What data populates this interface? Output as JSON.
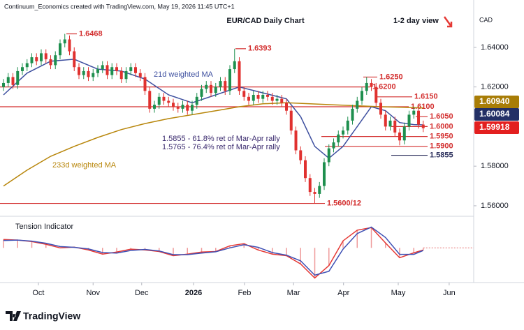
{
  "chart_data": {
    "type": "candlestick",
    "title": "EUR/CAD Daily Chart",
    "subtitle": "Continuum_Economics created with TradingView.com, May 19, 2026 11:45 UTC+1",
    "view_label": "1-2 day view",
    "currency": "CAD",
    "brand": "TradingView",
    "up_color": "#1e8f4e",
    "down_color": "#e0312f",
    "ylim": [
      1.5547,
      1.6639
    ],
    "xlim": [
      -0.74,
      99.7
    ],
    "yticks": [
      {
        "value": 1.64,
        "label": "1.64000"
      },
      {
        "value": 1.62,
        "label": "1.62000"
      },
      {
        "value": 1.58,
        "label": "1.58000"
      },
      {
        "value": 1.56,
        "label": "1.56000"
      }
    ],
    "xticks": [
      {
        "value": 7.4,
        "label": "Oct"
      },
      {
        "value": 19,
        "label": "Nov"
      },
      {
        "value": 29.3,
        "label": "Dec"
      },
      {
        "value": 40.3,
        "label": "2026"
      },
      {
        "value": 51.1,
        "label": "Feb"
      },
      {
        "value": 61.5,
        "label": "Mar"
      },
      {
        "value": 72.1,
        "label": "Apr"
      },
      {
        "value": 83.7,
        "label": "May"
      },
      {
        "value": 94.5,
        "label": "Jun"
      }
    ],
    "x": [
      0,
      1,
      2,
      3,
      4,
      5,
      6,
      7,
      8,
      9,
      10,
      11,
      12,
      13,
      14,
      15,
      16,
      17,
      18,
      19,
      20,
      21,
      22,
      23,
      24,
      25,
      26,
      27,
      28,
      29,
      30,
      31,
      32,
      33,
      34,
      35,
      36,
      37,
      38,
      39,
      40,
      41,
      42,
      43,
      44,
      45,
      46,
      47,
      48,
      49,
      50,
      51,
      52,
      53,
      54,
      55,
      56,
      57,
      58,
      59,
      60,
      61,
      62,
      63,
      64,
      65,
      66,
      67,
      68,
      69,
      70,
      71,
      72,
      73,
      74,
      75,
      76,
      77,
      78,
      79,
      80,
      81,
      82,
      83,
      84,
      85,
      86,
      87,
      88,
      89
    ],
    "open": [
      1.62,
      1.622,
      1.625,
      1.621,
      1.628,
      1.63,
      1.632,
      1.635,
      1.633,
      1.637,
      1.634,
      1.631,
      1.636,
      1.642,
      1.644,
      1.638,
      1.63,
      1.626,
      1.628,
      1.625,
      1.627,
      1.629,
      1.631,
      1.626,
      1.63,
      1.628,
      1.624,
      1.628,
      1.63,
      1.627,
      1.625,
      1.618,
      1.609,
      1.611,
      1.615,
      1.613,
      1.612,
      1.61,
      1.609,
      1.611,
      1.608,
      1.611,
      1.615,
      1.619,
      1.621,
      1.617,
      1.62,
      1.623,
      1.618,
      1.629,
      1.633,
      1.618,
      1.615,
      1.613,
      1.616,
      1.614,
      1.616,
      1.615,
      1.613,
      1.614,
      1.612,
      1.608,
      1.598,
      1.588,
      1.583,
      1.574,
      1.567,
      1.566,
      1.57,
      1.582,
      1.589,
      1.592,
      1.596,
      1.598,
      1.603,
      1.609,
      1.613,
      1.618,
      1.622,
      1.62,
      1.612,
      1.606,
      1.6,
      1.603,
      1.597,
      1.593,
      1.6,
      1.606,
      1.608,
      1.601
    ],
    "high": [
      1.624,
      1.627,
      1.627,
      1.63,
      1.632,
      1.634,
      1.637,
      1.637,
      1.639,
      1.639,
      1.636,
      1.638,
      1.644,
      1.6468,
      1.646,
      1.64,
      1.632,
      1.63,
      1.63,
      1.629,
      1.631,
      1.633,
      1.633,
      1.632,
      1.632,
      1.63,
      1.63,
      1.632,
      1.632,
      1.629,
      1.627,
      1.62,
      1.613,
      1.617,
      1.617,
      1.615,
      1.614,
      1.612,
      1.613,
      1.613,
      1.613,
      1.617,
      1.621,
      1.623,
      1.623,
      1.622,
      1.625,
      1.625,
      1.631,
      1.6393,
      1.635,
      1.62,
      1.617,
      1.618,
      1.618,
      1.618,
      1.618,
      1.617,
      1.616,
      1.616,
      1.614,
      1.61,
      1.6,
      1.59,
      1.585,
      1.576,
      1.569,
      1.572,
      1.584,
      1.591,
      1.594,
      1.598,
      1.6,
      1.605,
      1.611,
      1.615,
      1.62,
      1.625,
      1.624,
      1.622,
      1.614,
      1.608,
      1.605,
      1.605,
      1.599,
      1.602,
      1.608,
      1.61,
      1.61,
      1.603
    ],
    "low": [
      1.618,
      1.62,
      1.619,
      1.619,
      1.626,
      1.628,
      1.63,
      1.631,
      1.631,
      1.632,
      1.629,
      1.629,
      1.634,
      1.64,
      1.636,
      1.628,
      1.624,
      1.624,
      1.623,
      1.623,
      1.625,
      1.627,
      1.624,
      1.624,
      1.626,
      1.622,
      1.622,
      1.626,
      1.625,
      1.623,
      1.616,
      1.607,
      1.607,
      1.609,
      1.611,
      1.61,
      1.608,
      1.607,
      1.607,
      1.606,
      1.606,
      1.609,
      1.613,
      1.617,
      1.615,
      1.615,
      1.618,
      1.616,
      1.616,
      1.627,
      1.616,
      1.613,
      1.611,
      1.611,
      1.612,
      1.612,
      1.613,
      1.611,
      1.611,
      1.61,
      1.606,
      1.596,
      1.586,
      1.581,
      1.572,
      1.565,
      1.5612,
      1.564,
      1.568,
      1.58,
      1.587,
      1.59,
      1.594,
      1.596,
      1.601,
      1.607,
      1.611,
      1.616,
      1.618,
      1.61,
      1.604,
      1.598,
      1.598,
      1.595,
      1.5905,
      1.591,
      1.598,
      1.604,
      1.599,
      1.5972
    ],
    "close": [
      1.622,
      1.625,
      1.621,
      1.628,
      1.63,
      1.632,
      1.635,
      1.633,
      1.637,
      1.634,
      1.631,
      1.636,
      1.642,
      1.644,
      1.638,
      1.63,
      1.626,
      1.628,
      1.625,
      1.627,
      1.629,
      1.631,
      1.626,
      1.63,
      1.628,
      1.624,
      1.628,
      1.63,
      1.627,
      1.625,
      1.618,
      1.609,
      1.611,
      1.615,
      1.613,
      1.612,
      1.61,
      1.609,
      1.611,
      1.608,
      1.611,
      1.615,
      1.619,
      1.621,
      1.617,
      1.62,
      1.623,
      1.618,
      1.629,
      1.633,
      1.618,
      1.615,
      1.613,
      1.616,
      1.614,
      1.616,
      1.615,
      1.613,
      1.614,
      1.612,
      1.608,
      1.598,
      1.588,
      1.583,
      1.574,
      1.567,
      1.566,
      1.57,
      1.582,
      1.589,
      1.592,
      1.596,
      1.598,
      1.603,
      1.609,
      1.613,
      1.618,
      1.622,
      1.62,
      1.612,
      1.606,
      1.6,
      1.603,
      1.597,
      1.593,
      1.6,
      1.606,
      1.608,
      1.601,
      1.59918
    ],
    "overlays": [
      {
        "name": "21d weighted MA",
        "color": "#3d4f9f",
        "x": [
          0,
          5,
          10,
          15,
          20,
          25,
          30,
          35,
          40,
          45,
          50,
          55,
          60,
          63,
          66,
          69,
          72,
          75,
          78,
          81,
          84,
          87,
          89
        ],
        "values": [
          1.616,
          1.627,
          1.633,
          1.634,
          1.629,
          1.628,
          1.624,
          1.616,
          1.612,
          1.616,
          1.62,
          1.617,
          1.614,
          1.605,
          1.59,
          1.584,
          1.59,
          1.6,
          1.61,
          1.608,
          1.602,
          1.601,
          1.60084
        ]
      },
      {
        "name": "233d weighted MA",
        "color": "#b8860b",
        "x": [
          0,
          5,
          10,
          15,
          20,
          25,
          30,
          35,
          40,
          45,
          50,
          55,
          60,
          65,
          70,
          75,
          80,
          85,
          89
        ],
        "values": [
          1.57,
          1.578,
          1.585,
          1.59,
          1.5945,
          1.5985,
          1.6015,
          1.604,
          1.606,
          1.608,
          1.61,
          1.6115,
          1.612,
          1.6115,
          1.611,
          1.6105,
          1.61,
          1.6097,
          1.6094
        ]
      }
    ],
    "price_badges": [
      {
        "value": 1.6094,
        "label": "1.60940",
        "color": "#a87d06"
      },
      {
        "value": 1.60084,
        "label": "1.60084",
        "color": "#233066"
      },
      {
        "value": 1.59918,
        "label": "1.59918",
        "color": "#e31f1f"
      }
    ],
    "annotations": [
      {
        "label": "1.6468",
        "value": 1.6468,
        "color": "#d32f2f"
      },
      {
        "label": "1.6393",
        "value": 1.6393,
        "color": "#d32f2f"
      },
      {
        "label": "1.6250",
        "value": 1.625,
        "color": "#d32f2f"
      },
      {
        "label": "1.6200",
        "value": 1.62,
        "color": "#d32f2f"
      },
      {
        "label": "1.6150",
        "value": 1.615,
        "color": "#d32f2f"
      },
      {
        "label": "1.6100",
        "value": 1.61,
        "color": "#d32f2f"
      },
      {
        "label": "1.6050",
        "value": 1.605,
        "color": "#d32f2f"
      },
      {
        "label": "1.6000",
        "value": 1.6,
        "color": "#d32f2f"
      },
      {
        "label": "1.5950",
        "value": 1.595,
        "color": "#d32f2f"
      },
      {
        "label": "1.5900",
        "value": 1.59,
        "color": "#d32f2f"
      },
      {
        "label": "1.5855",
        "value": 1.5855,
        "color": "#2b2f5c"
      },
      {
        "label": "1.5600/12",
        "value": 1.5612,
        "color": "#d32f2f"
      }
    ],
    "notes": [
      "1.5855 - 61.8% ret of Mar-Apr rally",
      "1.5765 - 76.4% ret of Mar-Apr rally"
    ],
    "tension": {
      "title": "Tension Indicator",
      "ylim": [
        -1.2,
        1.0
      ],
      "x": [
        0,
        3,
        6,
        9,
        12,
        15,
        18,
        21,
        24,
        27,
        30,
        33,
        36,
        39,
        42,
        45,
        48,
        51,
        54,
        57,
        60,
        63,
        66,
        69,
        72,
        75,
        78,
        81,
        84,
        87,
        89
      ],
      "series": [
        {
          "color": "#e53935",
          "values": [
            0.32,
            0.3,
            0.24,
            0.14,
            0.0,
            0.03,
            -0.08,
            -0.24,
            -0.16,
            -0.05,
            -0.08,
            -0.14,
            -0.3,
            -0.24,
            -0.16,
            -0.14,
            0.08,
            0.16,
            -0.08,
            -0.24,
            -0.3,
            -0.62,
            -1.16,
            -0.68,
            0.27,
            0.68,
            0.78,
            0.19,
            -0.38,
            -0.19,
            -0.08
          ]
        },
        {
          "color": "#3f51b5",
          "values": [
            0.28,
            0.3,
            0.26,
            0.18,
            0.05,
            0.02,
            -0.04,
            -0.18,
            -0.2,
            -0.1,
            -0.06,
            -0.12,
            -0.26,
            -0.26,
            -0.2,
            -0.15,
            0.0,
            0.12,
            0.02,
            -0.18,
            -0.28,
            -0.5,
            -1.05,
            -0.9,
            -0.05,
            0.55,
            0.8,
            0.4,
            -0.25,
            -0.25,
            -0.1
          ]
        }
      ]
    }
  }
}
